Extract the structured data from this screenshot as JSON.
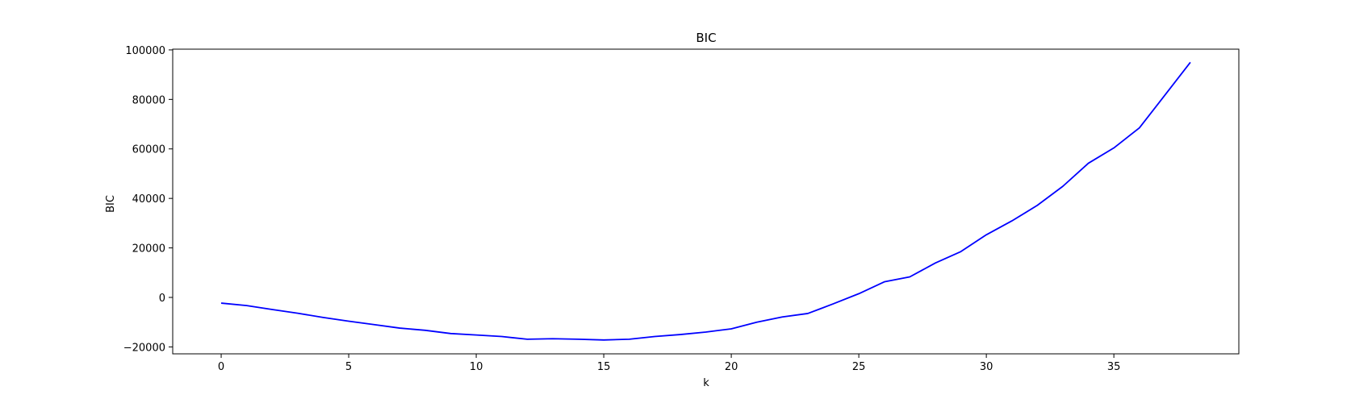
{
  "chart_data": {
    "type": "line",
    "title": "BIC",
    "xlabel": "k",
    "ylabel": "BIC",
    "xlim": [
      -1.9,
      39.9
    ],
    "ylim": [
      -22800,
      100300
    ],
    "xticks": [
      0,
      5,
      10,
      15,
      20,
      25,
      30,
      35
    ],
    "yticks": [
      -20000,
      0,
      20000,
      40000,
      60000,
      80000,
      100000
    ],
    "grid": false,
    "series": [
      {
        "color": "#0000ff",
        "x": [
          0,
          1,
          2,
          3,
          4,
          5,
          6,
          7,
          8,
          9,
          10,
          11,
          12,
          13,
          14,
          15,
          16,
          17,
          18,
          19,
          20,
          21,
          22,
          23,
          24,
          25,
          26,
          27,
          28,
          29,
          30,
          31,
          32,
          33,
          34,
          35,
          36,
          37,
          38
        ],
        "y": [
          -2300,
          -3300,
          -4900,
          -6400,
          -8100,
          -9600,
          -11000,
          -12400,
          -13300,
          -14600,
          -15200,
          -15800,
          -16900,
          -16700,
          -16900,
          -17200,
          -16900,
          -15800,
          -15000,
          -14000,
          -12700,
          -10000,
          -7900,
          -6500,
          -2600,
          1500,
          6300,
          8300,
          13900,
          18500,
          25300,
          30900,
          37200,
          44900,
          54200,
          60400,
          68500,
          81700,
          95000
        ]
      }
    ]
  }
}
